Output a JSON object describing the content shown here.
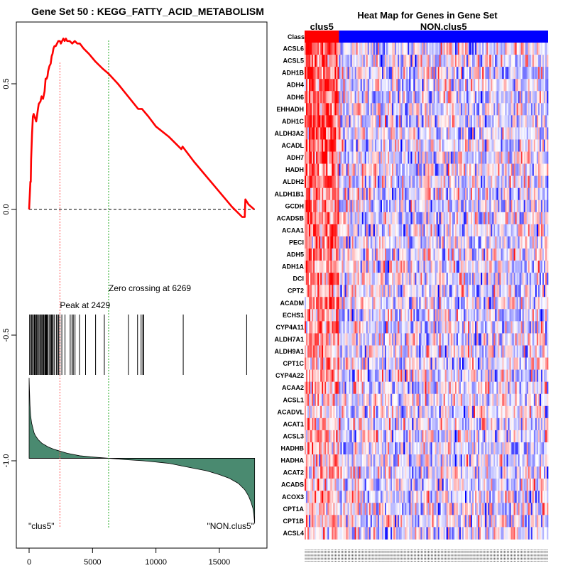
{
  "chart_data": [
    {
      "type": "line",
      "panel": "enrichment-plot",
      "title": "Gene Set  50 : KEGG_FATTY_ACID_METABOLISM",
      "xlim": [
        0,
        17800
      ],
      "ylim": [
        -1.3,
        0.75
      ],
      "x_ticks": [
        0,
        5000,
        10000,
        15000
      ],
      "x_tick_labels": [
        "0",
        "5000",
        "10000",
        "15000"
      ],
      "y_ticks": [
        0.5,
        0.0,
        -0.5,
        -1.0
      ],
      "y_tick_labels": [
        "0.5",
        "0.0",
        "-0.5",
        "-1.0"
      ],
      "running_es": {
        "x": [
          0,
          100,
          130,
          160,
          230,
          300,
          360,
          560,
          700,
          760,
          900,
          980,
          1100,
          1220,
          1300,
          1380,
          1450,
          1500,
          1600,
          1700,
          1780,
          1850,
          1920,
          2000,
          2100,
          2200,
          2300,
          2429,
          2500,
          2600,
          2700,
          2800,
          2900,
          3000,
          3200,
          3400,
          3600,
          3800,
          4000,
          4300,
          4700,
          5200,
          5800,
          6269,
          7000,
          7800,
          8600,
          8900,
          9400,
          10000,
          11000,
          12000,
          12100,
          13000,
          14000,
          15000,
          16000,
          16800,
          17000,
          17050,
          17300,
          17750
        ],
        "y": [
          0.0,
          0.11,
          0.11,
          0.2,
          0.3,
          0.37,
          0.38,
          0.35,
          0.4,
          0.42,
          0.43,
          0.45,
          0.44,
          0.47,
          0.52,
          0.52,
          0.53,
          0.55,
          0.57,
          0.58,
          0.61,
          0.62,
          0.64,
          0.65,
          0.65,
          0.66,
          0.67,
          0.67,
          0.66,
          0.67,
          0.68,
          0.67,
          0.68,
          0.67,
          0.67,
          0.66,
          0.67,
          0.66,
          0.66,
          0.64,
          0.62,
          0.59,
          0.56,
          0.54,
          0.5,
          0.45,
          0.4,
          0.4,
          0.37,
          0.33,
          0.29,
          0.24,
          0.25,
          0.19,
          0.13,
          0.07,
          0.01,
          -0.03,
          -0.03,
          0.04,
          0.02,
          0.0
        ]
      },
      "peak": {
        "x": 2429,
        "label": "Peak at 2429"
      },
      "zero_crossing": {
        "x": 6269,
        "label": "Zero crossing at 6269"
      },
      "hit_positions": [
        40,
        100,
        200,
        280,
        330,
        420,
        480,
        560,
        620,
        700,
        780,
        860,
        940,
        1010,
        1080,
        1150,
        1230,
        1290,
        1340,
        1380,
        1440,
        1500,
        1620,
        1680,
        1760,
        1820,
        1900,
        2000,
        2150,
        2250,
        2330,
        2429,
        2580,
        2830,
        3240,
        3380,
        3480,
        3620,
        3970,
        4450,
        5240,
        5930,
        7830,
        8550,
        8830,
        8960,
        9040,
        12150,
        17150
      ],
      "ranked_metric": {
        "x": [
          0,
          30,
          70,
          120,
          200,
          300,
          400,
          500,
          700,
          1000,
          1500,
          2000,
          3000,
          4000,
          5000,
          6269,
          7500,
          9000,
          10000,
          11000,
          12000,
          13000,
          14000,
          15000,
          15800,
          16500,
          17000,
          17300,
          17500,
          17650,
          17720,
          17780
        ],
        "y": [
          -0.67,
          -0.72,
          -0.78,
          -0.82,
          -0.85,
          -0.87,
          -0.89,
          -0.9,
          -0.915,
          -0.93,
          -0.945,
          -0.955,
          -0.97,
          -0.98,
          -0.985,
          -0.99,
          -0.995,
          -1.0,
          -1.005,
          -1.01,
          -1.02,
          -1.03,
          -1.04,
          -1.055,
          -1.07,
          -1.09,
          -1.115,
          -1.14,
          -1.165,
          -1.19,
          -1.215,
          -1.25
        ]
      },
      "baseline_y": -0.99,
      "label_left": "\"clus5\"",
      "label_right": "\"NON.clus5\"",
      "colors": {
        "es_line": "#ff0000",
        "peak_line": "#ff5555",
        "zero_line": "#22aa22",
        "metric_fill": "#4a8a70"
      }
    },
    {
      "type": "heatmap",
      "panel": "gene-heatmap",
      "title": "Heat Map for Genes in Gene Set",
      "class_row_label": "Class",
      "classes": [
        {
          "name": "clus5",
          "color": "#ff0000",
          "fraction": 0.14
        },
        {
          "name": "NON.clus5",
          "color": "#0000ff",
          "fraction": 0.86
        }
      ],
      "genes": [
        "ACSL6",
        "ACSL5",
        "ADH1B",
        "ADH4",
        "ADH6",
        "EHHADH",
        "ADH1C",
        "ALDH3A2",
        "ACADL",
        "ADH7",
        "HADH",
        "ALDH2",
        "ALDH1B1",
        "GCDH",
        "ACADSB",
        "ACAA1",
        "PECI",
        "ADH5",
        "ADH1A",
        "DCI",
        "CPT2",
        "ACADM",
        "ECHS1",
        "CYP4A11",
        "ALDH7A1",
        "ALDH9A1",
        "CPT1C",
        "CYP4A22",
        "ACAA2",
        "ACSL1",
        "ACADVL",
        "ACAT1",
        "ACSL3",
        "HADHB",
        "HADHA",
        "ACAT2",
        "ACADS",
        "ACOX3",
        "CPT1A",
        "CPT1B",
        "ACSL4"
      ],
      "num_samples": 170,
      "color_scale": {
        "low": "#0000ff",
        "mid": "#ffffff",
        "high": "#ff0000"
      }
    }
  ]
}
